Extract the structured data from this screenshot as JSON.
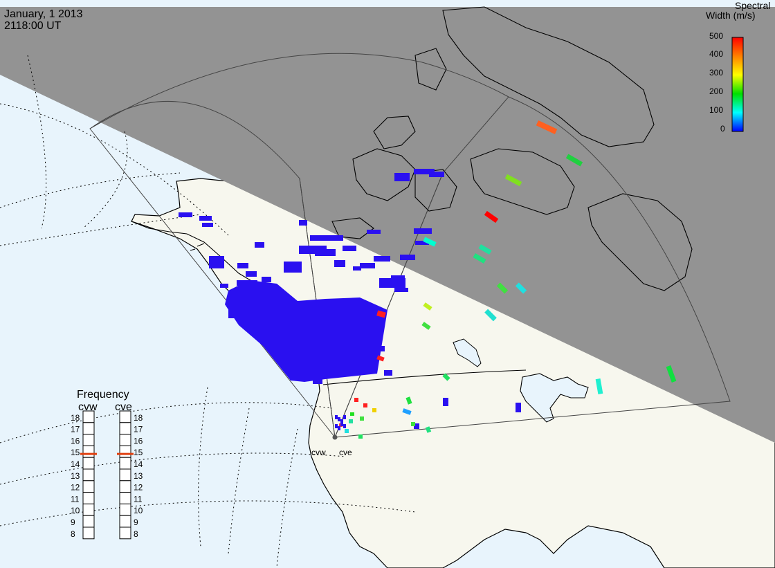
{
  "header": {
    "date": "January, 1 2013",
    "time": "2118:00 UT"
  },
  "legend": {
    "title_line1": "Spectral",
    "title_line2": "Width (m/s)",
    "ticks": [
      "500",
      "400",
      "300",
      "200",
      "100",
      "0"
    ],
    "colors": [
      "#ff0000",
      "#ff8000",
      "#ffff00",
      "#00e000",
      "#00ffff",
      "#0000ff"
    ]
  },
  "frequency": {
    "title": "Frequency",
    "radars": [
      "cvw",
      "cve"
    ],
    "levels": [
      "18",
      "17",
      "16",
      "15",
      "14",
      "13",
      "12",
      "11",
      "10",
      "9",
      "8"
    ],
    "selected": [
      15,
      15
    ],
    "marker_color": "#e04010"
  },
  "radar_labels": [
    "cvw",
    "cve"
  ],
  "colors": {
    "night": "#939393",
    "day_land": "#f7f7ee",
    "ocean": "#e8f4fc",
    "cvw_echo": "#2a10f0"
  }
}
